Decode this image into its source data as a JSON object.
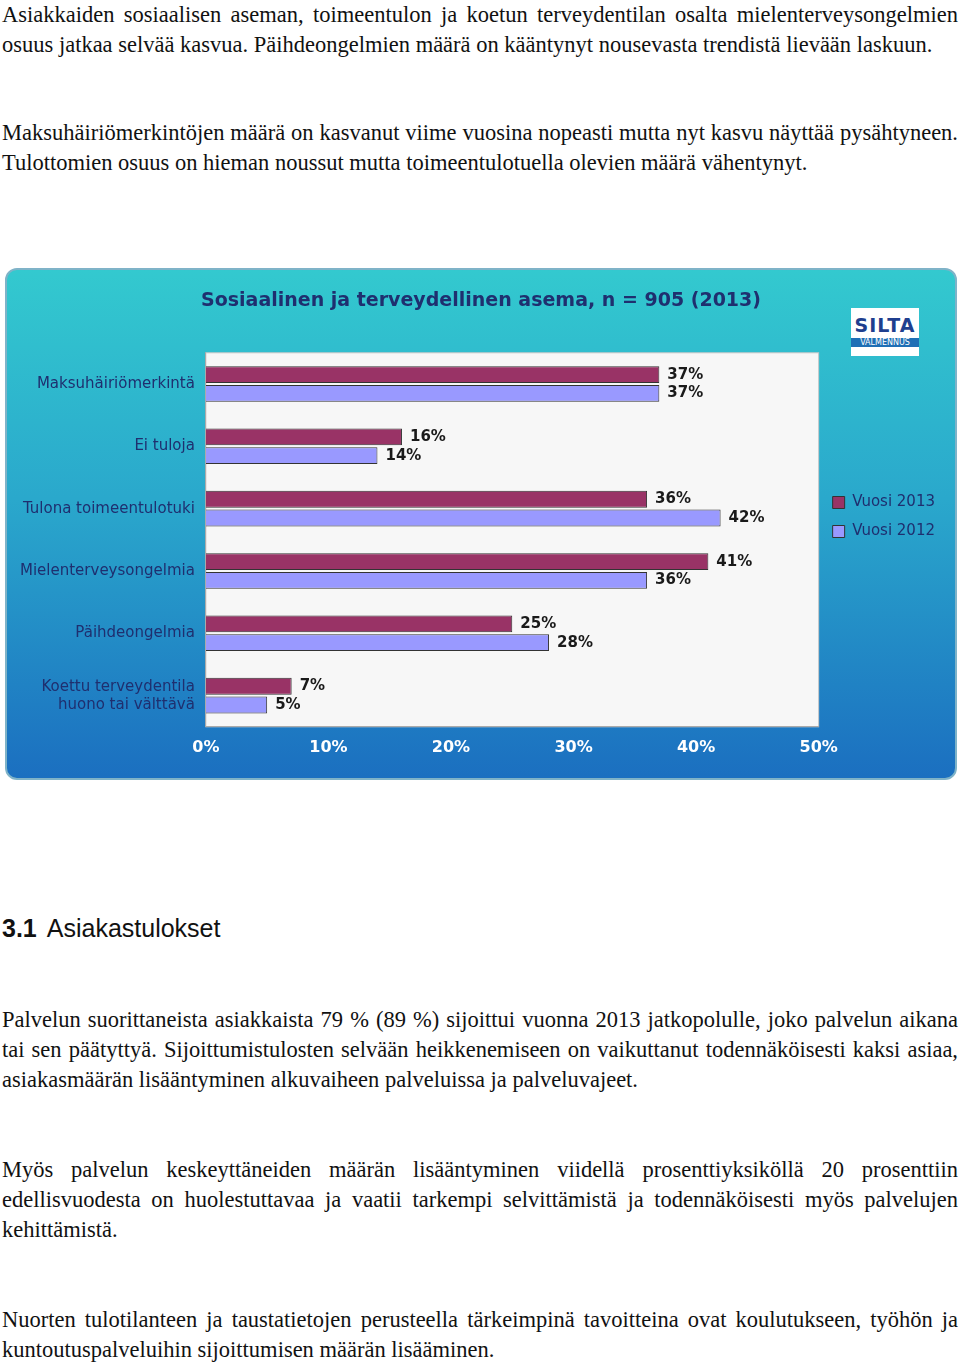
{
  "intro": [
    "Asiakkaiden sosiaalisen aseman, toimeentulon ja koetun terveydentilan osalta mielenterveysongelmien osuus jatkaa selvää kasvua. Päihdeongelmien määrä on kääntynyt nousevasta trendistä lievään laskuun.",
    "Maksuhäiriömerkintöjen määrä on kasvanut viime vuosina nopeasti mutta nyt kasvu näyttää pysähtyneen. Tulottomien osuus on hieman noussut mutta toimeentulotuella olevien määrä vähentynyt."
  ],
  "chart_data": {
    "type": "bar",
    "orientation": "horizontal",
    "title": "Sosiaalinen ja terveydellinen asema, n = 905 (2013)",
    "annotations": [
      "SILTA",
      "VALMENNUS"
    ],
    "categories": [
      "Maksuhäiriömerkintä",
      "Ei tuloja",
      "Tulona toimeentulotuki",
      "Mielenterveysongelmia",
      "Päihdeongelmia",
      "Koettu terveydentila huono tai välttävä"
    ],
    "series": [
      {
        "name": "Vuosi 2013",
        "color": "#993366",
        "values": [
          37,
          16,
          36,
          41,
          25,
          7
        ],
        "value_labels": [
          "37%",
          "16%",
          "36%",
          "41%",
          "25%",
          "7%"
        ]
      },
      {
        "name": "Vuosi 2012",
        "color": "#9999ff",
        "values": [
          37,
          14,
          42,
          36,
          28,
          5
        ],
        "value_labels": [
          "37%",
          "14%",
          "42%",
          "36%",
          "28%",
          "5%"
        ]
      }
    ],
    "xlim": [
      0,
      50
    ],
    "xticks": [
      {
        "value": 0,
        "label": "0%"
      },
      {
        "value": 10,
        "label": "10%"
      },
      {
        "value": 20,
        "label": "20%"
      },
      {
        "value": 30,
        "label": "30%"
      },
      {
        "value": 40,
        "label": "40%"
      },
      {
        "value": 50,
        "label": "50%"
      }
    ],
    "grid": false,
    "legend": "right",
    "data_labels": true
  },
  "section": {
    "number": "3.1",
    "title": "Asiakastulokset"
  },
  "paragraphs": [
    "Palvelun suorittaneista asiakkaista 79 % (89 %) sijoittui vuonna 2013 jatkopolulle, joko palvelun aikana tai sen päätyttyä.  Sijoittumistulosten selvään heikkenemiseen on vaikuttanut todennäköisesti kaksi asiaa, asiakasmäärän lisääntyminen alkuvaiheen palveluissa ja palveluvajeet.",
    "Myös palvelun keskeyttäneiden määrän lisääntyminen viidellä prosenttiyksiköllä 20 prosenttiin edellisvuodesta on huolestuttavaa ja vaatii tarkempi selvittämistä ja todennäköisesti myös palvelujen kehittämistä.",
    "Nuorten tulotilanteen ja taustatietojen perusteella tärkeimpinä tavoitteina ovat koulutukseen, työhön ja kuntoutuspalveluihin sijoittumisen määrän lisääminen."
  ]
}
